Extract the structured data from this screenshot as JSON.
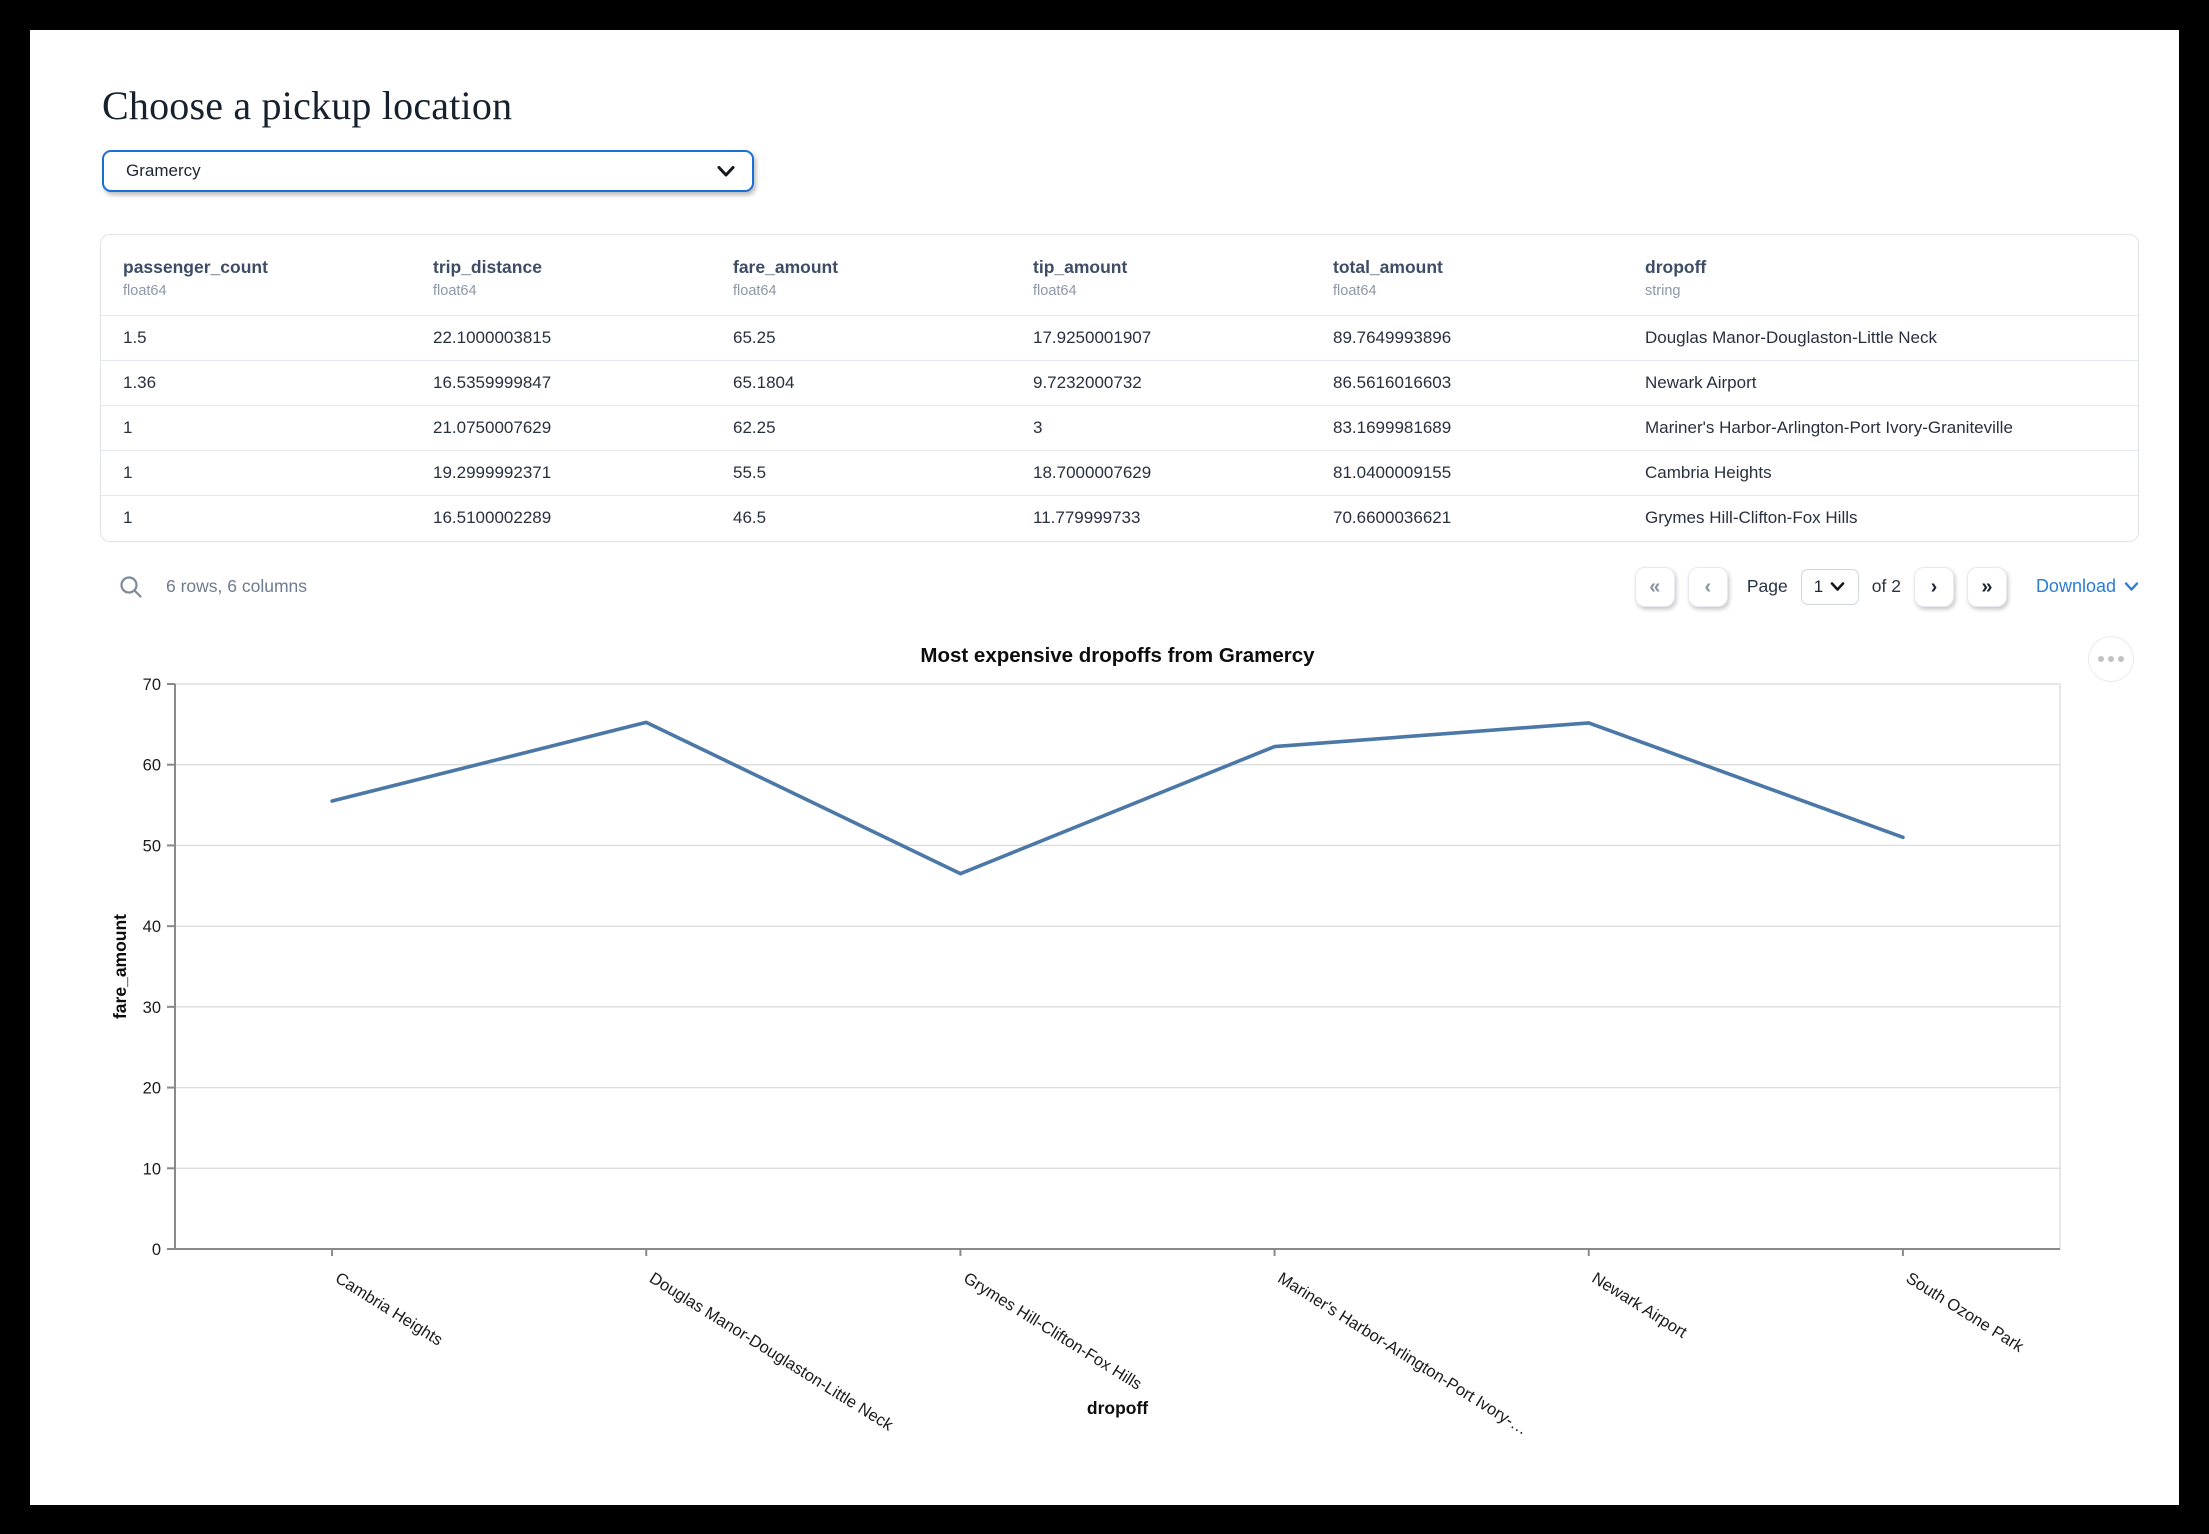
{
  "page": {
    "title": "Choose a pickup location"
  },
  "pickup_select": {
    "value": "Gramercy"
  },
  "table": {
    "columns": [
      {
        "name": "passenger_count",
        "dtype": "float64"
      },
      {
        "name": "trip_distance",
        "dtype": "float64"
      },
      {
        "name": "fare_amount",
        "dtype": "float64"
      },
      {
        "name": "tip_amount",
        "dtype": "float64"
      },
      {
        "name": "total_amount",
        "dtype": "float64"
      },
      {
        "name": "dropoff",
        "dtype": "string"
      }
    ],
    "rows": [
      [
        "1.5",
        "22.1000003815",
        "65.25",
        "17.9250001907",
        "89.7649993896",
        "Douglas Manor-Douglaston-Little Neck"
      ],
      [
        "1.36",
        "16.5359999847",
        "65.1804",
        "9.7232000732",
        "86.5616016603",
        "Newark Airport"
      ],
      [
        "1",
        "21.0750007629",
        "62.25",
        "3",
        "83.1699981689",
        "Mariner's Harbor-Arlington-Port Ivory-Graniteville"
      ],
      [
        "1",
        "19.2999992371",
        "55.5",
        "18.7000007629",
        "81.0400009155",
        "Cambria Heights"
      ],
      [
        "1",
        "16.5100002289",
        "46.5",
        "11.779999733",
        "70.6600036621",
        "Grymes Hill-Clifton-Fox Hills"
      ]
    ]
  },
  "footer": {
    "summary": "6 rows, 6 columns",
    "first_page": "«",
    "prev_page": "‹",
    "page_label": "Page",
    "page_value": "1",
    "page_total": "of 2",
    "next_page": "›",
    "last_page": "»",
    "download_label": "Download"
  },
  "chart_data": {
    "type": "line",
    "title": "Most expensive dropoffs from Gramercy",
    "xlabel": "dropoff",
    "ylabel": "fare_amount",
    "categories": [
      "Cambria Heights",
      "Douglas Manor-Douglaston-Little Neck",
      "Grymes Hill-Clifton-Fox Hills",
      "Mariner's Harbor-Arlington-Port Ivory-…",
      "Newark Airport",
      "South Ozone Park"
    ],
    "values": [
      55.5,
      65.25,
      46.5,
      62.25,
      65.1804,
      51
    ],
    "ylim": [
      0,
      70
    ],
    "yticks": [
      0,
      10,
      20,
      30,
      40,
      50,
      60,
      70
    ],
    "grid": true,
    "legend": "none",
    "label_angle": 32,
    "line_color": "#4c78a8",
    "grid_color": "#dddddd",
    "axis_color": "#8a8a8a",
    "text_color": "#1b1b1b"
  }
}
